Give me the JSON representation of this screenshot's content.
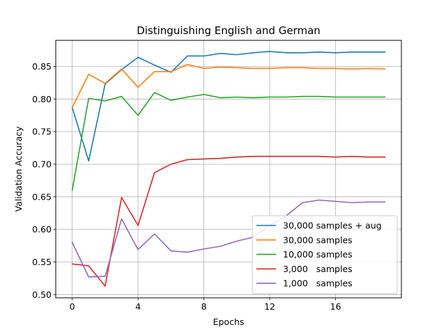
{
  "chart_data": {
    "type": "line",
    "title": "Distinguishing English and German",
    "xlabel": "Epochs",
    "ylabel": "Validation Accuracy",
    "xlim": [
      -1,
      20
    ],
    "ylim": [
      0.495,
      0.89
    ],
    "xticks": [
      0,
      4,
      8,
      12,
      16
    ],
    "yticks": [
      0.5,
      0.55,
      0.6,
      0.65,
      0.7,
      0.75,
      0.8,
      0.85
    ],
    "ytick_labels": [
      "0.50",
      "0.55",
      "0.60",
      "0.65",
      "0.70",
      "0.75",
      "0.80",
      "0.85"
    ],
    "grid": true,
    "legend_position": "lower-right",
    "x": [
      0,
      1,
      2,
      3,
      4,
      5,
      6,
      7,
      8,
      9,
      10,
      11,
      12,
      13,
      14,
      15,
      16,
      17,
      18,
      19
    ],
    "series": [
      {
        "name": "30,000 samples + aug",
        "color": "#1f77b4",
        "values": [
          0.787,
          0.705,
          0.823,
          0.845,
          0.864,
          0.852,
          0.841,
          0.866,
          0.866,
          0.87,
          0.868,
          0.871,
          0.873,
          0.871,
          0.871,
          0.872,
          0.871,
          0.872,
          0.872,
          0.872
        ]
      },
      {
        "name": "30,000 samples",
        "color": "#ff7f0e",
        "values": [
          0.787,
          0.838,
          0.824,
          0.846,
          0.818,
          0.842,
          0.842,
          0.853,
          0.847,
          0.849,
          0.848,
          0.847,
          0.847,
          0.848,
          0.848,
          0.847,
          0.847,
          0.846,
          0.847,
          0.846
        ]
      },
      {
        "name": "10,000 samples",
        "color": "#2ca02c",
        "values": [
          0.66,
          0.801,
          0.797,
          0.804,
          0.775,
          0.81,
          0.798,
          0.803,
          0.807,
          0.802,
          0.803,
          0.802,
          0.803,
          0.803,
          0.804,
          0.804,
          0.803,
          0.803,
          0.803,
          0.803
        ]
      },
      {
        "name": "3,000   samples",
        "color": "#d62728",
        "values": [
          0.547,
          0.544,
          0.513,
          0.649,
          0.606,
          0.687,
          0.7,
          0.707,
          0.708,
          0.709,
          0.711,
          0.712,
          0.712,
          0.712,
          0.712,
          0.712,
          0.711,
          0.712,
          0.711,
          0.711
        ]
      },
      {
        "name": "1,000   samples",
        "color": "#9467bd",
        "values": [
          0.58,
          0.527,
          0.528,
          0.616,
          0.569,
          0.593,
          0.567,
          0.565,
          0.57,
          0.574,
          0.582,
          0.588,
          0.606,
          0.621,
          0.641,
          0.645,
          0.643,
          0.641,
          0.642,
          0.642
        ]
      }
    ]
  }
}
